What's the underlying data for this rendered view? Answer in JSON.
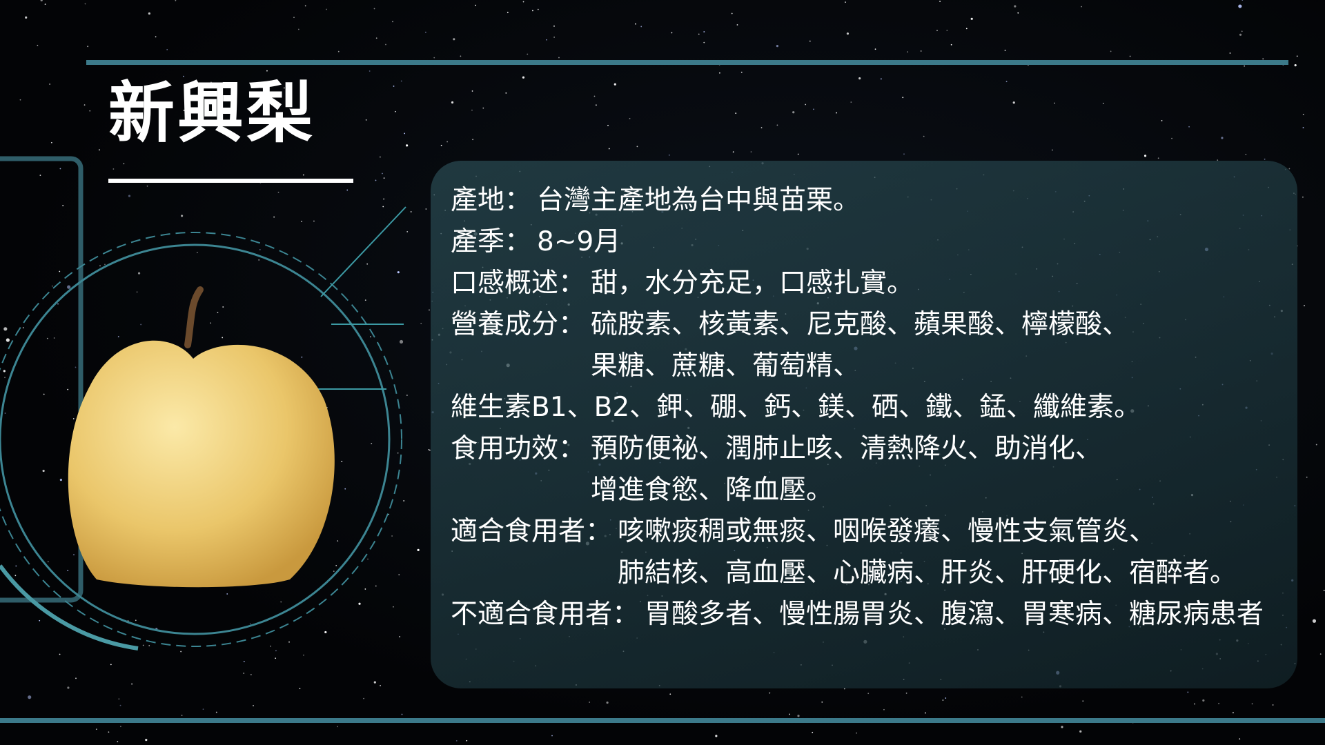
{
  "header": {
    "title": "新興梨"
  },
  "info": [
    {
      "label": "產地：",
      "lines": [
        "台灣主產地為台中與苗栗。"
      ]
    },
    {
      "label": "產季：",
      "lines": [
        "8~9月"
      ]
    },
    {
      "label": "口感概述：",
      "lines": [
        "甜，水分充足，口感扎實。"
      ]
    },
    {
      "label": "營養成分：",
      "lines": [
        "硫胺素、核黃素、尼克酸、蘋果酸、檸檬酸、",
        "果糖、蔗糖、葡萄精、"
      ]
    },
    {
      "lines": [
        "維生素B1、B2、鉀、硼、鈣、鎂、硒、鐵、錳、纖維素。"
      ]
    },
    {
      "label": "食用功效：",
      "lines": [
        "預防便祕、潤肺止咳、清熱降火、助消化、",
        "增進食慾、降血壓。"
      ]
    },
    {
      "label": "適合食用者：",
      "lines": [
        "咳嗽痰稠或無痰、咽喉發癢、慢性支氣管炎、",
        "肺結核、高血壓、心臟病、肝炎、肝硬化、宿醉者。"
      ]
    },
    {
      "label": "不適合食用者：",
      "lines": [
        "胃酸多者、慢性腸胃炎、腹瀉、胃寒病、糖尿病患者"
      ]
    }
  ]
}
